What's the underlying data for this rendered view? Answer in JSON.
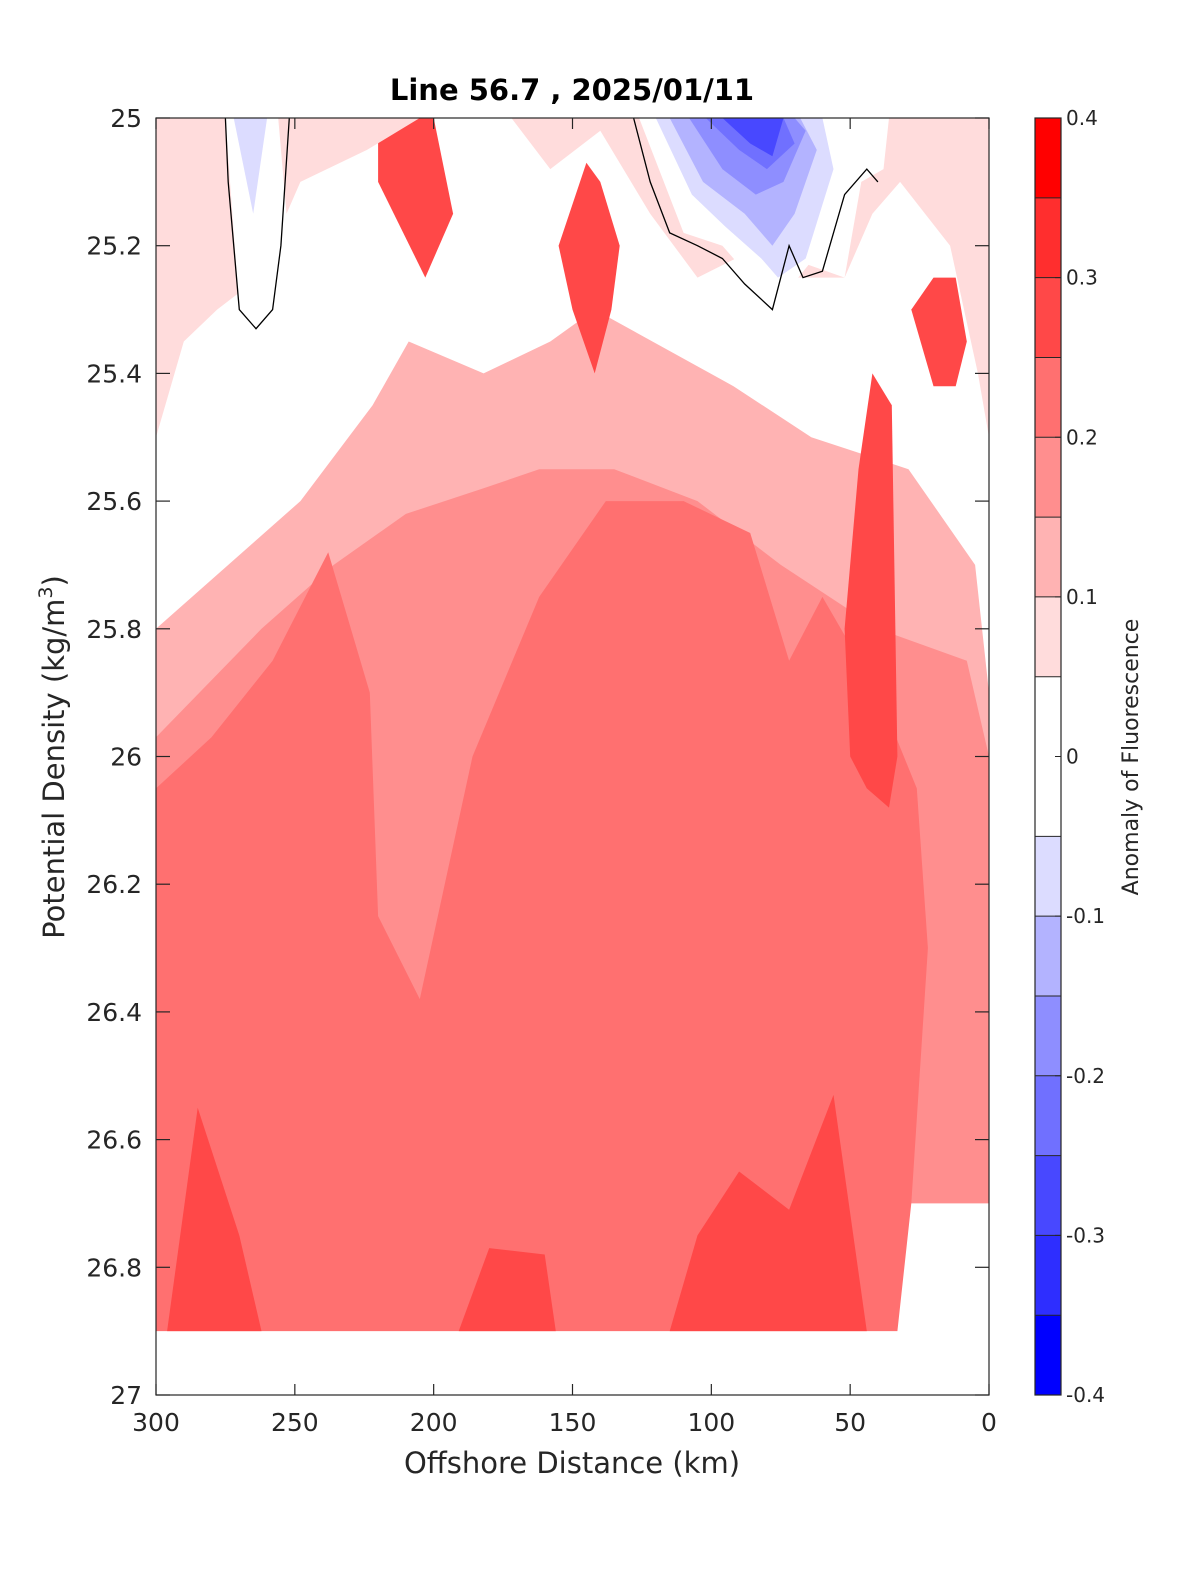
{
  "chart_data": {
    "type": "heatmap",
    "title": "Line 56.7 , 2025/01/11",
    "xlabel": "Offshore Distance (km)",
    "ylabel_main": "Potential Density (kg/m",
    "ylabel_sup": "3",
    "ylabel_tail": ")",
    "xlim": [
      300,
      0
    ],
    "ylim": [
      25,
      27
    ],
    "y_reversed": true,
    "xticks": [
      "300",
      "250",
      "200",
      "150",
      "100",
      "50",
      "0"
    ],
    "yticks": [
      "25",
      "25.2",
      "25.4",
      "25.6",
      "25.8",
      "26",
      "26.2",
      "26.4",
      "26.6",
      "26.8",
      "27"
    ],
    "colorbar": {
      "label": "Anomaly of Fluorescence",
      "range": [
        -0.4,
        0.4
      ],
      "ticks": [
        "0.4",
        "0.3",
        "0.2",
        "0.1",
        "0",
        "-0.1",
        "-0.2",
        "-0.3",
        "-0.4"
      ],
      "levels": [
        {
          "min": 0.35,
          "max": 0.4,
          "color": "#ff0000"
        },
        {
          "min": 0.3,
          "max": 0.35,
          "color": "#ff2e2e"
        },
        {
          "min": 0.25,
          "max": 0.3,
          "color": "#ff4848"
        },
        {
          "min": 0.2,
          "max": 0.25,
          "color": "#ff7070"
        },
        {
          "min": 0.15,
          "max": 0.2,
          "color": "#ff8e8e"
        },
        {
          "min": 0.1,
          "max": 0.15,
          "color": "#ffb3b3"
        },
        {
          "min": 0.05,
          "max": 0.1,
          "color": "#ffdcdc"
        },
        {
          "min": -0.05,
          "max": 0.05,
          "color": "#ffffff"
        },
        {
          "min": -0.1,
          "max": -0.05,
          "color": "#dcdcff"
        },
        {
          "min": -0.15,
          "max": -0.1,
          "color": "#b3b3ff"
        },
        {
          "min": -0.2,
          "max": -0.15,
          "color": "#8e8eff"
        },
        {
          "min": -0.25,
          "max": -0.2,
          "color": "#7070ff"
        },
        {
          "min": -0.3,
          "max": -0.25,
          "color": "#4848ff"
        },
        {
          "min": -0.35,
          "max": -0.3,
          "color": "#2e2eff"
        },
        {
          "min": -0.4,
          "max": -0.35,
          "color": "#0000ff"
        }
      ]
    },
    "data_extent": {
      "density_max": 26.9
    },
    "features": [
      {
        "level": 0.125,
        "x": [
          300,
          248,
          222,
          209,
          182,
          158,
          142,
          92,
          64,
          29,
          5,
          0,
          0,
          47,
          94,
          138,
          158,
          198,
          226,
          300
        ],
        "y": [
          25.8,
          25.6,
          25.45,
          25.35,
          25.4,
          25.35,
          25.3,
          25.42,
          25.5,
          25.55,
          25.7,
          25.9,
          26.2,
          26.1,
          26.4,
          26.3,
          26.5,
          26.35,
          26.2,
          26.3
        ]
      },
      {
        "level": 0.175,
        "x": [
          300,
          262,
          236,
          210,
          182,
          162,
          135,
          105,
          75,
          40,
          8,
          0,
          0,
          60,
          120,
          200,
          300
        ],
        "y": [
          25.97,
          25.8,
          25.7,
          25.62,
          25.58,
          25.55,
          25.55,
          25.6,
          25.7,
          25.8,
          25.85,
          26.0,
          26.7,
          26.7,
          26.7,
          26.7,
          26.7
        ]
      },
      {
        "level": 0.225,
        "x": [
          300,
          280,
          258,
          238,
          223,
          220,
          205,
          186,
          162,
          138,
          110,
          86,
          72,
          60,
          40,
          26,
          22,
          25,
          28,
          33,
          300
        ],
        "y": [
          26.05,
          25.97,
          25.85,
          25.68,
          25.9,
          26.25,
          26.38,
          26.0,
          25.75,
          25.6,
          25.6,
          25.65,
          25.85,
          25.75,
          25.9,
          26.05,
          26.3,
          26.5,
          26.7,
          26.9,
          26.9
        ]
      },
      {
        "level": 0.275,
        "x": [
          296,
          276,
          262,
          270,
          285,
          296
        ],
        "y": [
          26.9,
          26.9,
          26.9,
          26.75,
          26.55,
          26.9
        ]
      },
      {
        "level": 0.275,
        "x": [
          191,
          170,
          156,
          160,
          180,
          191
        ],
        "y": [
          26.9,
          26.9,
          26.9,
          26.78,
          26.77,
          26.9
        ]
      },
      {
        "level": 0.275,
        "x": [
          115,
          105,
          90,
          72,
          56,
          44,
          46,
          56,
          80,
          104,
          115
        ],
        "y": [
          26.9,
          26.75,
          26.65,
          26.71,
          26.53,
          26.9,
          26.9,
          26.9,
          26.9,
          26.9,
          26.9
        ]
      },
      {
        "level": 0.275,
        "x": [
          52,
          47,
          42,
          35,
          33,
          36,
          44,
          50,
          52
        ],
        "y": [
          25.8,
          25.55,
          25.4,
          25.45,
          26.0,
          26.08,
          26.05,
          26.0,
          25.8
        ]
      },
      {
        "level": 0.275,
        "x": [
          155,
          145,
          140,
          133,
          136,
          142,
          150,
          155
        ],
        "y": [
          25.2,
          25.07,
          25.1,
          25.2,
          25.3,
          25.4,
          25.3,
          25.2
        ]
      },
      {
        "level": 0.275,
        "x": [
          220,
          213,
          200,
          193,
          203,
          220
        ],
        "y": [
          25.0,
          25.0,
          25.0,
          25.15,
          25.25,
          25.1
        ]
      },
      {
        "level": 0.275,
        "x": [
          28,
          20,
          12,
          8,
          12,
          20,
          28
        ],
        "y": [
          25.3,
          25.25,
          25.25,
          25.35,
          25.42,
          25.42,
          25.3
        ]
      },
      {
        "level": 0.075,
        "x": [
          300,
          290,
          278,
          263,
          248,
          224,
          205,
          190,
          172,
          158,
          140,
          122,
          105,
          82,
          70,
          52,
          42,
          32,
          14,
          4,
          0,
          0,
          300
        ],
        "y": [
          25.5,
          25.35,
          25.3,
          25.25,
          25.1,
          25.05,
          25.0,
          25.0,
          25.0,
          25.08,
          25.02,
          25.15,
          25.25,
          25.2,
          25.25,
          25.25,
          25.15,
          25.1,
          25.2,
          25.4,
          25.5,
          25.0,
          25.0
        ]
      },
      {
        "level": 0.0,
        "x": [
          275,
          265,
          256,
          252,
          262,
          270,
          275
        ],
        "y": [
          25.0,
          25.0,
          25.0,
          25.2,
          25.32,
          25.3,
          25.0
        ]
      },
      {
        "level": 0.0,
        "x": [
          126,
          110,
          96,
          84,
          78,
          65,
          52,
          46,
          38,
          36,
          126
        ],
        "y": [
          25.0,
          25.18,
          25.2,
          25.26,
          25.3,
          25.23,
          25.25,
          25.1,
          25.08,
          25.0,
          25.0
        ]
      },
      {
        "level": -0.075,
        "x": [
          272,
          265,
          260,
          266,
          272
        ],
        "y": [
          25.0,
          25.15,
          25.0,
          25.0,
          25.0
        ]
      },
      {
        "level": -0.075,
        "x": [
          120,
          107,
          95,
          82,
          76,
          66,
          56,
          60,
          120
        ],
        "y": [
          25.0,
          25.12,
          25.17,
          25.22,
          25.25,
          25.22,
          25.08,
          25.0,
          25.0
        ]
      },
      {
        "level": -0.125,
        "x": [
          115,
          103,
          88,
          78,
          70,
          62,
          68,
          115
        ],
        "y": [
          25.0,
          25.1,
          25.15,
          25.2,
          25.15,
          25.05,
          25.0,
          25.0
        ]
      },
      {
        "level": -0.175,
        "x": [
          108,
          96,
          84,
          74,
          66,
          70,
          108
        ],
        "y": [
          25.0,
          25.08,
          25.12,
          25.1,
          25.02,
          25.0,
          25.0
        ]
      },
      {
        "level": -0.225,
        "x": [
          102,
          90,
          80,
          70,
          74,
          102
        ],
        "y": [
          25.0,
          25.05,
          25.08,
          25.04,
          25.0,
          25.0
        ]
      },
      {
        "level": -0.275,
        "x": [
          96,
          86,
          78,
          74,
          96
        ],
        "y": [
          25.0,
          25.04,
          25.06,
          25.0,
          25.0
        ]
      }
    ],
    "zero_contours": [
      {
        "x": [
          275,
          274,
          270,
          264,
          258,
          255,
          252
        ],
        "y": [
          25.0,
          25.1,
          25.3,
          25.33,
          25.3,
          25.2,
          25.0
        ]
      },
      {
        "x": [
          128,
          122,
          115,
          105,
          96,
          88,
          78,
          72,
          67,
          60,
          52,
          44,
          40
        ],
        "y": [
          25.0,
          25.1,
          25.18,
          25.2,
          25.22,
          25.26,
          25.3,
          25.2,
          25.25,
          25.24,
          25.12,
          25.08,
          25.1
        ]
      }
    ]
  }
}
